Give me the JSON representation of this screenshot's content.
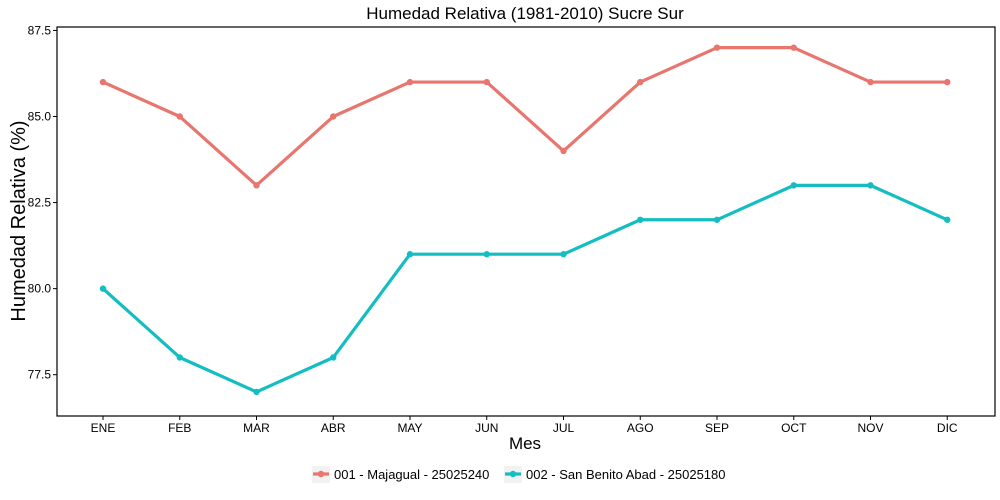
{
  "chart_data": {
    "type": "line",
    "title": "Humedad Relativa (1981-2010)  Sucre Sur",
    "xlabel": "Mes",
    "ylabel": "Humedad Relativa  (%)",
    "categories": [
      "ENE",
      "FEB",
      "MAR",
      "ABR",
      "MAY",
      "JUN",
      "JUL",
      "AGO",
      "SEP",
      "OCT",
      "NOV",
      "DIC"
    ],
    "yticks": [
      "77.5",
      "80.0",
      "82.5",
      "85.0",
      "87.5"
    ],
    "ylim": [
      76.3,
      87.6
    ],
    "grid": false,
    "legend_position": "bottom",
    "series": [
      {
        "name": "001 - Majagual - 25025240",
        "color": "#E8756E",
        "values": [
          86,
          85,
          83,
          85,
          86,
          86,
          84,
          86,
          87,
          87,
          86,
          86
        ]
      },
      {
        "name": "002 - San Benito Abad - 25025180",
        "color": "#14BDC1",
        "values": [
          80,
          78,
          77,
          78,
          81,
          81,
          81,
          82,
          82,
          83,
          83,
          82
        ]
      }
    ]
  }
}
